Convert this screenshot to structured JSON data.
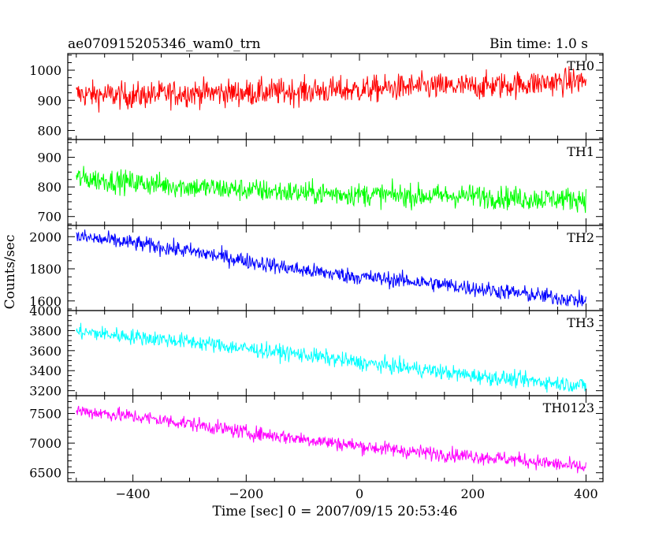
{
  "header": {
    "left_title": "ae070915205346_wam0_trn",
    "right_title": "Bin time: 1.0 s"
  },
  "axes": {
    "ylabel": "Counts/sec",
    "xlabel": "Time [sec] 0 = 2007/09/15 20:53:46",
    "x_ticks": [
      "−400",
      "−200",
      "0",
      "200",
      "400"
    ]
  },
  "chart_data": [
    {
      "type": "line",
      "name": "TH0",
      "color": "#ff0000",
      "xlim": [
        -515,
        430
      ],
      "ylim": [
        770,
        1055
      ],
      "y_ticks": [
        800,
        900,
        1000
      ],
      "trend": [
        [
          -500,
          920
        ],
        [
          -400,
          915
        ],
        [
          -300,
          925
        ],
        [
          -200,
          925
        ],
        [
          -100,
          930
        ],
        [
          0,
          935
        ],
        [
          100,
          945
        ],
        [
          200,
          945
        ],
        [
          300,
          955
        ],
        [
          400,
          965
        ]
      ],
      "noise_amplitude": 40
    },
    {
      "type": "line",
      "name": "TH1",
      "color": "#00ff00",
      "xlim": [
        -515,
        430
      ],
      "ylim": [
        670,
        960
      ],
      "y_ticks": [
        700,
        800,
        900
      ],
      "trend": [
        [
          -500,
          830
        ],
        [
          -400,
          815
        ],
        [
          -300,
          800
        ],
        [
          -200,
          790
        ],
        [
          -100,
          780
        ],
        [
          0,
          775
        ],
        [
          100,
          770
        ],
        [
          200,
          770
        ],
        [
          300,
          760
        ],
        [
          400,
          760
        ]
      ],
      "noise_amplitude": 35
    },
    {
      "type": "line",
      "name": "TH2",
      "color": "#0000ff",
      "xlim": [
        -515,
        430
      ],
      "ylim": [
        1540,
        2070
      ],
      "y_ticks": [
        1600,
        1800,
        2000
      ],
      "trend": [
        [
          -500,
          2000
        ],
        [
          -400,
          1960
        ],
        [
          -300,
          1910
        ],
        [
          -200,
          1850
        ],
        [
          -100,
          1790
        ],
        [
          0,
          1750
        ],
        [
          100,
          1720
        ],
        [
          200,
          1680
        ],
        [
          300,
          1640
        ],
        [
          400,
          1600
        ]
      ],
      "noise_amplitude": 45
    },
    {
      "type": "line",
      "name": "TH3",
      "color": "#00ffff",
      "xlim": [
        -515,
        430
      ],
      "ylim": [
        3150,
        4000
      ],
      "y_ticks": [
        3200,
        3400,
        3600,
        3800,
        4000
      ],
      "trend": [
        [
          -500,
          3790
        ],
        [
          -400,
          3740
        ],
        [
          -300,
          3690
        ],
        [
          -200,
          3620
        ],
        [
          -100,
          3560
        ],
        [
          0,
          3480
        ],
        [
          100,
          3420
        ],
        [
          200,
          3350
        ],
        [
          300,
          3300
        ],
        [
          400,
          3250
        ]
      ],
      "noise_amplitude": 70
    },
    {
      "type": "line",
      "name": "TH0123",
      "color": "#ff00ff",
      "xlim": [
        -515,
        430
      ],
      "ylim": [
        6350,
        7800
      ],
      "y_ticks": [
        6500,
        7000,
        7500
      ],
      "trend": [
        [
          -500,
          7550
        ],
        [
          -400,
          7450
        ],
        [
          -300,
          7330
        ],
        [
          -200,
          7180
        ],
        [
          -100,
          7070
        ],
        [
          0,
          6950
        ],
        [
          100,
          6850
        ],
        [
          200,
          6780
        ],
        [
          300,
          6700
        ],
        [
          400,
          6580
        ]
      ],
      "noise_amplitude": 110
    }
  ]
}
